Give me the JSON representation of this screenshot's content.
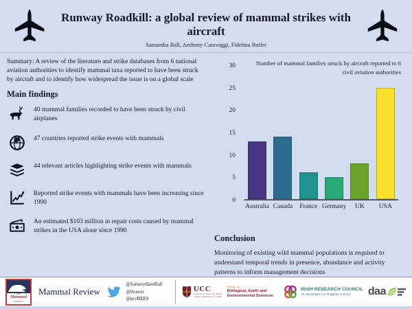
{
  "header": {
    "title": "Runway Roadkill: a global review of mammal strikes with aircraft",
    "authors": "Samantha Ball, Anthony Caravaggi, Fidelma Butler",
    "left_icon": "airplane-icon",
    "right_icon": "airplane-icon"
  },
  "summary": "Summary: A review of the literature and strike databases from 6 national aviation authorities to identify mammal taxa reported to have been struck by aircraft and to identify how widespread the issue is on a global scale",
  "findings": {
    "heading": "Main findings",
    "items": [
      {
        "icon": "deer-icon",
        "text": "40 mammal families recorded to have been struck by civil airplanes"
      },
      {
        "icon": "globe-icon",
        "text": "47 countries reported strike events with mammals"
      },
      {
        "icon": "books-icon",
        "text": "44 relevant articles highlighting strike events with mammals"
      },
      {
        "icon": "trend-icon",
        "text": "Reported strike events with mammals have been increasing since 1990"
      },
      {
        "icon": "money-icon",
        "text": "An estimated $103 million in repair costs caused by mammal strikes in the USA alone since 1990"
      }
    ]
  },
  "chart_data": {
    "type": "bar",
    "title": "Number of mammal families  struck by aircraft reported to 6 civil  aviation  authorities",
    "categories": [
      "Australia",
      "Canada",
      "France",
      "Germany",
      "UK",
      "USA"
    ],
    "values": [
      13,
      14,
      6,
      5,
      8,
      25
    ],
    "colors": [
      "#453781",
      "#2e6d8e",
      "#21918c",
      "#29a878",
      "#6ba32c",
      "#f9e02a"
    ],
    "xlabel": "",
    "ylabel": "",
    "ylim": [
      0,
      30
    ],
    "ytick_step": 5,
    "grid": false,
    "legend": "none"
  },
  "conclusion": {
    "heading": "Conclusion",
    "text": "Monitoring of existing wild mammal populations is required to understand temporal trends in presence, abundance and activity patterns to inform management decisions"
  },
  "footer": {
    "mammal_society": {
      "the": "THE",
      "name": "Mammal",
      "society": "SOCIETY"
    },
    "journal": "Mammal Review",
    "twitter_icon": "twitter-bird-icon",
    "twitter_handles": [
      "@SammyHareBall",
      "@thonoir",
      "@uccBEES"
    ],
    "ucc": {
      "acronym": "UCC",
      "sub1": "University College Cork, Ireland",
      "sub2": "Coláiste na hOllscoile Corcaigh"
    },
    "school": {
      "pre": "School of",
      "line1": "Biological, Earth and",
      "line2": "Environmental Sciences"
    },
    "irc": {
      "line1": "IRISH RESEARCH COUNCIL",
      "line2": "An Chomhairle um Thaighde in Éirinn"
    },
    "daa": "daa"
  },
  "colors": {
    "background": "#d3ddf0",
    "text": "#15152e",
    "twitter_blue": "#4da7de",
    "ucc_maroon": "#6e1f2e",
    "school_orange": "#e87722",
    "school_red": "#9e1b32",
    "irc_teal": "#3d7b7d",
    "daa_green": "#8dc63f",
    "mammal_society_red": "#c23b36"
  }
}
